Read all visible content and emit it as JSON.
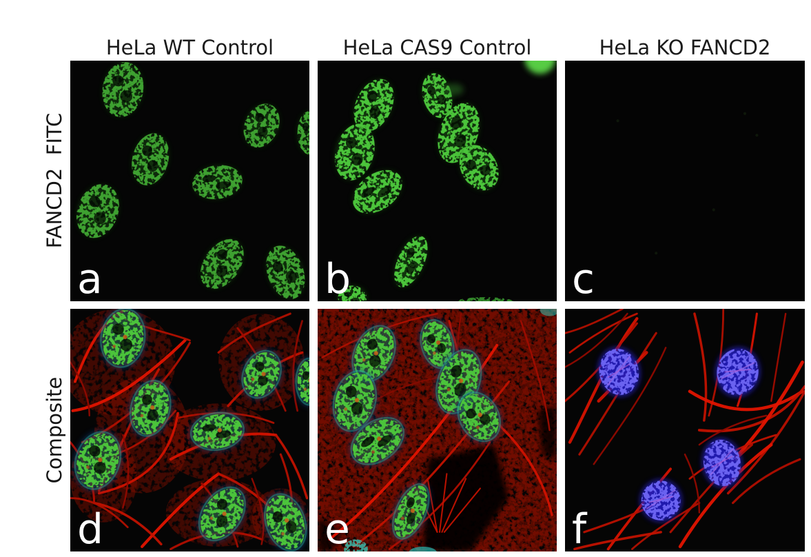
{
  "figure": {
    "column_headers": [
      "HeLa WT Control",
      "HeLa CAS9 Control",
      "HeLa KO FANCD2"
    ],
    "row_labels": [
      "FANCD2  FITC",
      "Composite"
    ],
    "panel_letters": [
      "a",
      "b",
      "c",
      "d",
      "e",
      "f"
    ],
    "channel_colors": {
      "fitc_green_bright": "#4cc43a",
      "fitc_green_dim": "#1e6418",
      "actin_red_bright": "#e21400",
      "actin_red_mid": "#b01000",
      "actin_red_dim": "#7e0c00",
      "dapi_blue": "#201cb8",
      "dapi_blue_light": "#6a62f0",
      "cyan_rim": "#2fd0c0",
      "panel_background": "#050505",
      "figure_background": "#ffffff",
      "header_text": "#1b1b1b",
      "panel_letter_text": "#ffffff"
    }
  }
}
